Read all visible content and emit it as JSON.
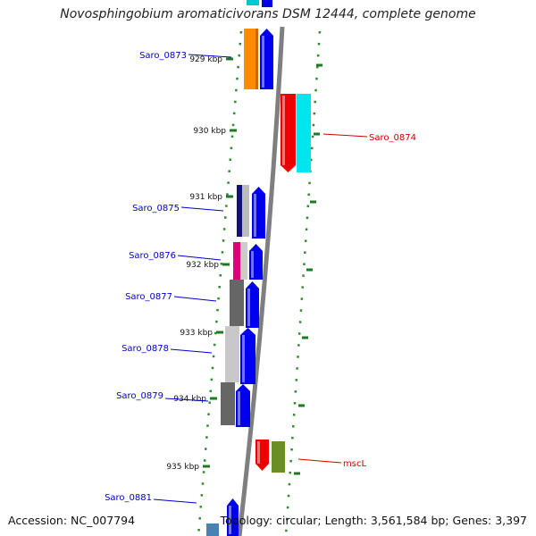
{
  "title": "Novosphingobium aromaticivorans DSM 12444, complete genome",
  "accession": "Accession: NC_007794",
  "summary": "Topology: circular; Length: 3,561,584 bp; Genes: 3,397",
  "colors": {
    "backbone": "#7f7f7f",
    "dot": "#2e8b2e",
    "tick": "#1e7a1e",
    "label_blue": "#0000cc",
    "label_red": "#cc0000"
  },
  "ticks": [
    {
      "label": "929 kbp"
    },
    {
      "label": "930 kbp"
    },
    {
      "label": "931 kbp"
    },
    {
      "label": "932 kbp"
    },
    {
      "label": "933 kbp"
    },
    {
      "label": "934 kbp"
    },
    {
      "label": "935 kbp"
    }
  ],
  "gene_labels": [
    {
      "label": "Saro_0873",
      "color": "#0000cc"
    },
    {
      "label": "Saro_0874",
      "color": "#cc0000"
    },
    {
      "label": "Saro_0875",
      "color": "#0000cc"
    },
    {
      "label": "Saro_0876",
      "color": "#0000cc"
    },
    {
      "label": "Saro_0877",
      "color": "#0000cc"
    },
    {
      "label": "Saro_0878",
      "color": "#0000cc"
    },
    {
      "label": "Saro_0879",
      "color": "#0000cc"
    },
    {
      "label": "mscL",
      "color": "#cc0000"
    },
    {
      "label": "Saro_0881",
      "color": "#0000cc"
    }
  ]
}
